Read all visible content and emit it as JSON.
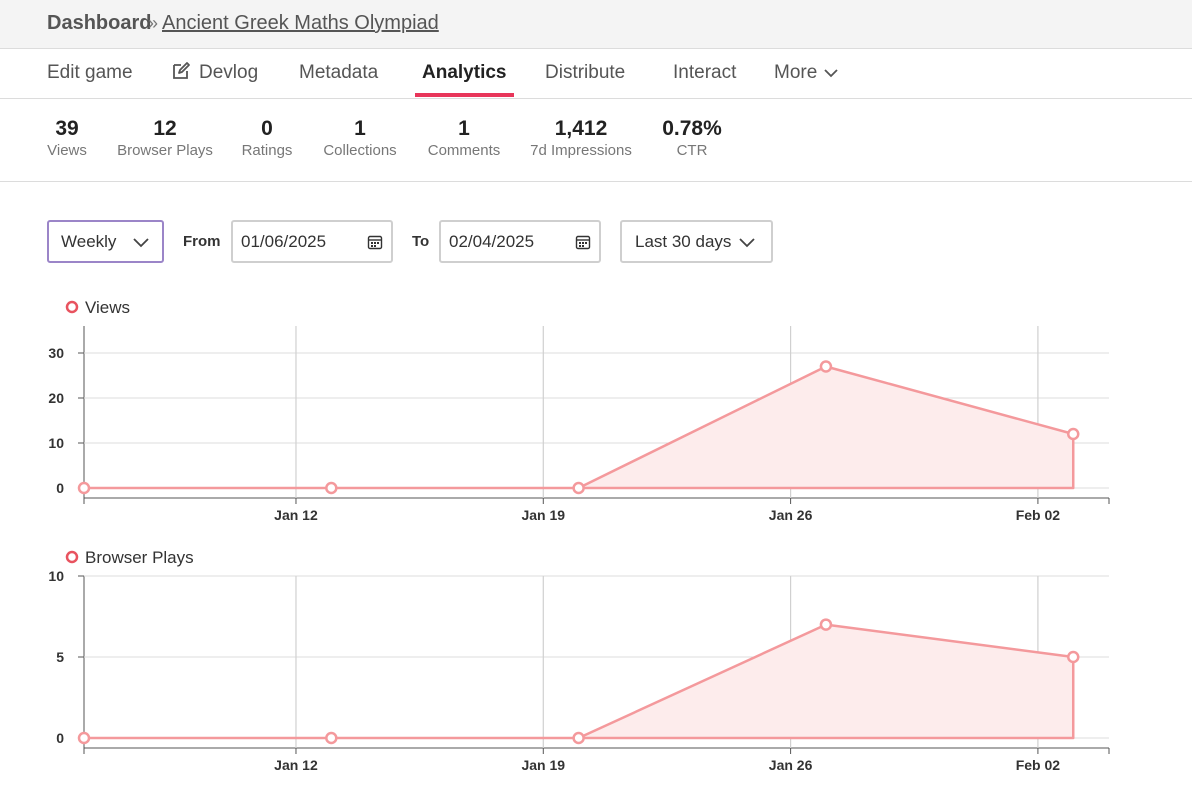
{
  "breadcrumb": {
    "root": "Dashboard",
    "separator": "»",
    "current": "Ancient Greek Maths Olympiad"
  },
  "tabs": [
    {
      "label": "Edit game",
      "active": false
    },
    {
      "label": "Devlog",
      "active": false,
      "icon": "edit-icon"
    },
    {
      "label": "Metadata",
      "active": false
    },
    {
      "label": "Analytics",
      "active": true
    },
    {
      "label": "Distribute",
      "active": false
    },
    {
      "label": "Interact",
      "active": false
    },
    {
      "label": "More",
      "active": false,
      "icon": "chevron-down-icon"
    }
  ],
  "stats": [
    {
      "value": "39",
      "label": "Views"
    },
    {
      "value": "12",
      "label": "Browser Plays"
    },
    {
      "value": "0",
      "label": "Ratings"
    },
    {
      "value": "1",
      "label": "Collections"
    },
    {
      "value": "1",
      "label": "Comments"
    },
    {
      "value": "1,412",
      "label": "7d Impressions"
    },
    {
      "value": "0.78%",
      "label": "CTR"
    }
  ],
  "controls": {
    "interval": "Weekly",
    "from_label": "From",
    "from_value": "01/06/2025",
    "to_label": "To",
    "to_value": "02/04/2025",
    "range": "Last 30 days"
  },
  "colors": {
    "accent": "#e8355a",
    "series_line": "#f4999c",
    "series_fill": "#fdecec",
    "select_border": "#9b85c8"
  },
  "chart_data": [
    {
      "type": "area",
      "legend": "Views",
      "x": [
        "2025-01-06",
        "2025-01-13",
        "2025-01-20",
        "2025-01-27",
        "2025-02-03"
      ],
      "values": [
        0,
        0,
        0,
        27,
        12
      ],
      "x_ticks": [
        "Jan 12",
        "Jan 19",
        "Jan 26",
        "Feb 02"
      ],
      "y_ticks": [
        0,
        10,
        20,
        30
      ],
      "ylim": [
        0,
        36
      ],
      "grid": true,
      "legend_position": "top-left"
    },
    {
      "type": "area",
      "legend": "Browser Plays",
      "x": [
        "2025-01-06",
        "2025-01-13",
        "2025-01-20",
        "2025-01-27",
        "2025-02-03"
      ],
      "values": [
        0,
        0,
        0,
        7,
        5
      ],
      "x_ticks": [
        "Jan 12",
        "Jan 19",
        "Jan 26",
        "Feb 02"
      ],
      "y_ticks": [
        0,
        5,
        10
      ],
      "ylim": [
        0,
        10
      ],
      "grid": true,
      "legend_position": "top-left"
    }
  ]
}
